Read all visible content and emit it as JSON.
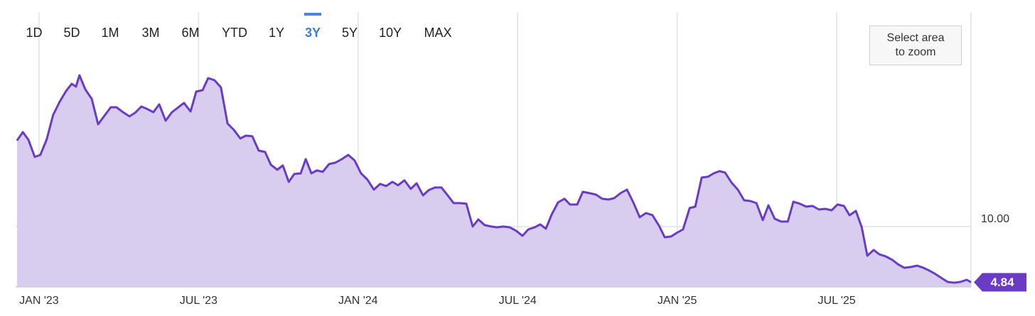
{
  "chart_data": {
    "type": "area",
    "range_buttons": [
      "1D",
      "5D",
      "1M",
      "3M",
      "6M",
      "YTD",
      "1Y",
      "3Y",
      "5Y",
      "10Y",
      "MAX"
    ],
    "selected_range": "3Y",
    "zoom_button": "Select area to zoom",
    "xlim": [
      -0.88,
      35.05
    ],
    "xticks": [
      {
        "value": 0,
        "label": "JAN '23"
      },
      {
        "value": 6,
        "label": "JUL '23"
      },
      {
        "value": 12,
        "label": "JAN '24"
      },
      {
        "value": 18,
        "label": "JUL '24"
      },
      {
        "value": 24,
        "label": "JAN '25"
      },
      {
        "value": 30,
        "label": "JUL '25"
      }
    ],
    "ylim": [
      4.41,
      29.8
    ],
    "yticks": [
      {
        "value": 10,
        "label": "10.00"
      }
    ],
    "grid": true,
    "x": [
      -0.83,
      -0.61,
      -0.4,
      -0.16,
      0.05,
      0.29,
      0.53,
      0.78,
      1.02,
      1.23,
      1.39,
      1.52,
      1.74,
      1.98,
      2.22,
      2.46,
      2.7,
      2.91,
      3.16,
      3.4,
      3.61,
      3.85,
      4.09,
      4.3,
      4.52,
      4.76,
      5.0,
      5.21,
      5.45,
      5.7,
      5.91,
      6.15,
      6.36,
      6.6,
      6.84,
      7.09,
      7.33,
      7.57,
      7.78,
      8.02,
      8.26,
      8.5,
      8.72,
      8.96,
      9.17,
      9.39,
      9.6,
      9.84,
      10.03,
      10.24,
      10.45,
      10.67,
      10.91,
      11.15,
      11.39,
      11.63,
      11.87,
      12.11,
      12.35,
      12.59,
      12.83,
      13.05,
      13.29,
      13.5,
      13.74,
      13.98,
      14.2,
      14.44,
      14.65,
      14.89,
      15.13,
      15.37,
      15.59,
      15.83,
      16.07,
      16.31,
      16.52,
      16.76,
      17.01,
      17.22,
      17.46,
      17.7,
      17.94,
      18.18,
      18.4,
      18.64,
      18.85,
      19.06,
      19.28,
      19.52,
      19.76,
      19.97,
      20.24,
      20.45,
      20.7,
      20.94,
      21.18,
      21.42,
      21.63,
      21.87,
      22.11,
      22.35,
      22.59,
      22.83,
      23.07,
      23.32,
      23.53,
      23.77,
      23.98,
      24.22,
      24.47,
      24.68,
      24.92,
      25.16,
      25.37,
      25.59,
      25.8,
      26.04,
      26.28,
      26.52,
      26.74,
      26.98,
      27.22,
      27.43,
      27.67,
      27.91,
      28.16,
      28.37,
      28.61,
      28.85,
      29.09,
      29.33,
      29.57,
      29.81,
      30.03,
      30.27,
      30.48,
      30.72,
      30.94,
      31.15,
      31.39,
      31.6,
      31.84,
      32.09,
      32.3,
      32.54,
      32.78,
      33.02,
      33.26,
      33.48,
      33.72,
      33.96,
      34.17,
      34.41,
      34.65,
      34.89,
      35.05
    ],
    "series": [
      {
        "color": "#6a3cc6",
        "fill": "#d8cdee",
        "values": [
          17.96,
          18.75,
          18.03,
          16.45,
          16.64,
          18.09,
          20.33,
          21.58,
          22.57,
          23.22,
          22.96,
          24.01,
          22.7,
          21.84,
          19.47,
          20.26,
          21.05,
          21.05,
          20.59,
          20.2,
          20.53,
          21.12,
          20.86,
          20.59,
          21.32,
          19.8,
          20.59,
          20.99,
          21.45,
          20.66,
          22.5,
          22.63,
          23.75,
          23.55,
          22.89,
          19.54,
          18.95,
          18.16,
          18.42,
          18.36,
          17.04,
          16.91,
          15.72,
          15.26,
          15.66,
          14.14,
          14.87,
          14.93,
          16.25,
          14.93,
          15.2,
          15.07,
          15.79,
          15.92,
          16.25,
          16.64,
          16.12,
          14.93,
          14.34,
          13.42,
          13.95,
          13.75,
          14.14,
          13.82,
          14.28,
          13.49,
          14.01,
          12.89,
          13.36,
          13.62,
          13.62,
          12.89,
          12.17,
          12.17,
          12.11,
          10.0,
          10.66,
          10.13,
          10.0,
          9.93,
          10.0,
          9.93,
          9.61,
          9.14,
          9.74,
          9.93,
          10.2,
          9.8,
          11.12,
          12.24,
          12.57,
          12.04,
          12.04,
          13.22,
          13.09,
          12.96,
          12.57,
          12.5,
          12.63,
          13.09,
          13.42,
          12.24,
          10.86,
          11.25,
          11.05,
          10.07,
          9.01,
          9.08,
          9.41,
          9.74,
          11.71,
          11.84,
          14.54,
          14.61,
          14.93,
          15.13,
          15.0,
          14.08,
          13.42,
          12.43,
          12.37,
          12.17,
          10.59,
          11.97,
          10.72,
          10.46,
          10.46,
          12.3,
          12.11,
          11.84,
          11.91,
          11.58,
          11.64,
          11.51,
          12.04,
          11.91,
          11.05,
          11.45,
          9.93,
          7.3,
          7.83,
          7.43,
          7.24,
          6.91,
          6.51,
          6.18,
          6.25,
          6.38,
          6.18,
          5.92,
          5.59,
          5.2,
          4.87,
          4.8,
          4.87,
          5.07,
          4.84
        ]
      }
    ]
  }
}
